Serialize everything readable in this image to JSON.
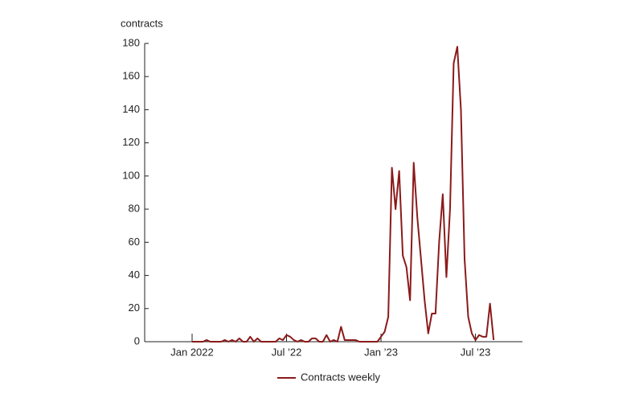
{
  "chart_data": {
    "type": "line",
    "y_label": "contracts",
    "categories": [
      "Jan 2022",
      null,
      null,
      null,
      null,
      null,
      null,
      null,
      null,
      null,
      null,
      null,
      null,
      null,
      null,
      null,
      null,
      null,
      null,
      null,
      null,
      null,
      null,
      null,
      null,
      null,
      "Jul ’22",
      null,
      null,
      null,
      null,
      null,
      null,
      null,
      null,
      null,
      null,
      null,
      null,
      null,
      null,
      null,
      null,
      null,
      null,
      null,
      null,
      null,
      null,
      null,
      null,
      null,
      "Jan ’23",
      null,
      null,
      null,
      null,
      null,
      null,
      null,
      null,
      null,
      null,
      null,
      null,
      null,
      null,
      null,
      null,
      null,
      null,
      null,
      null,
      null,
      null,
      null,
      null,
      null,
      "Jul ’23",
      null,
      null,
      null,
      null,
      null
    ],
    "series": [
      {
        "name": "Contracts weekly",
        "color": "#8b1a1a",
        "values": [
          0,
          0,
          0,
          0,
          1,
          0,
          0,
          0,
          0,
          1,
          0,
          1,
          0,
          2,
          0,
          0,
          3,
          0,
          2,
          0,
          0,
          0,
          0,
          0,
          2,
          1,
          4,
          3,
          1,
          0,
          1,
          0,
          0,
          2,
          2,
          0,
          0,
          4,
          0,
          1,
          0,
          9,
          1,
          1,
          1,
          1,
          0,
          0,
          0,
          0,
          0,
          0,
          3,
          6,
          15,
          105,
          80,
          103,
          52,
          45,
          25,
          108,
          75,
          50,
          25,
          5,
          17,
          17,
          60,
          89,
          39,
          80,
          168,
          178,
          140,
          50,
          15,
          5,
          1,
          4,
          3,
          3,
          23,
          1
        ]
      }
    ],
    "ylim": [
      0,
      180
    ],
    "yticks": [
      0,
      20,
      40,
      60,
      80,
      100,
      120,
      140,
      160,
      180
    ],
    "grid": false
  }
}
